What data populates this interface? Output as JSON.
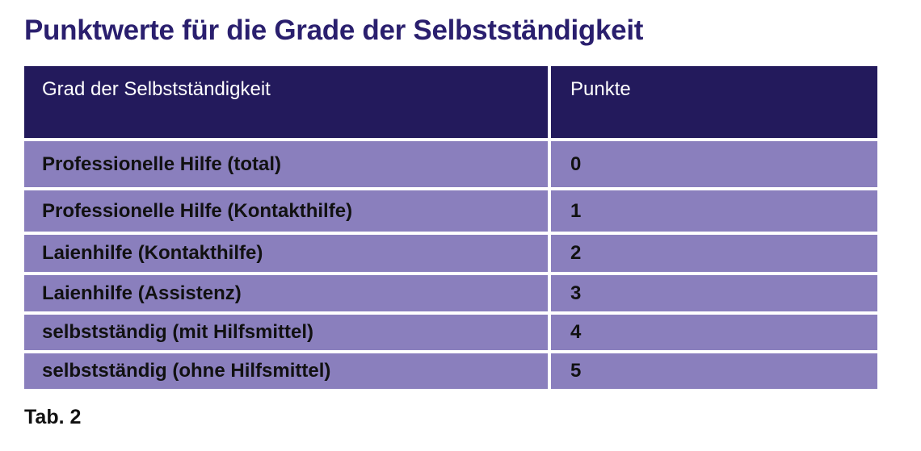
{
  "title": "Punktwerte für die Grade der Selbstständigkeit",
  "table": {
    "headers": [
      "Grad der Selbstständigkeit",
      "Punkte"
    ],
    "rows": [
      [
        "Professionelle Hilfe (total)",
        "0"
      ],
      [
        "Professionelle Hilfe (Kontakthilfe)",
        "1"
      ],
      [
        "Laienhilfe (Kontakthilfe)",
        "2"
      ],
      [
        "Laienhilfe (Assistenz)",
        "3"
      ],
      [
        "selbstständig (mit Hilfsmittel)",
        "4"
      ],
      [
        "selbstständig (ohne Hilfsmittel)",
        "5"
      ]
    ]
  },
  "caption": "Tab. 2",
  "colors": {
    "title": "#2a1f6e",
    "header_bg": "#231a5c",
    "row_bg": "#8a7fbd"
  }
}
